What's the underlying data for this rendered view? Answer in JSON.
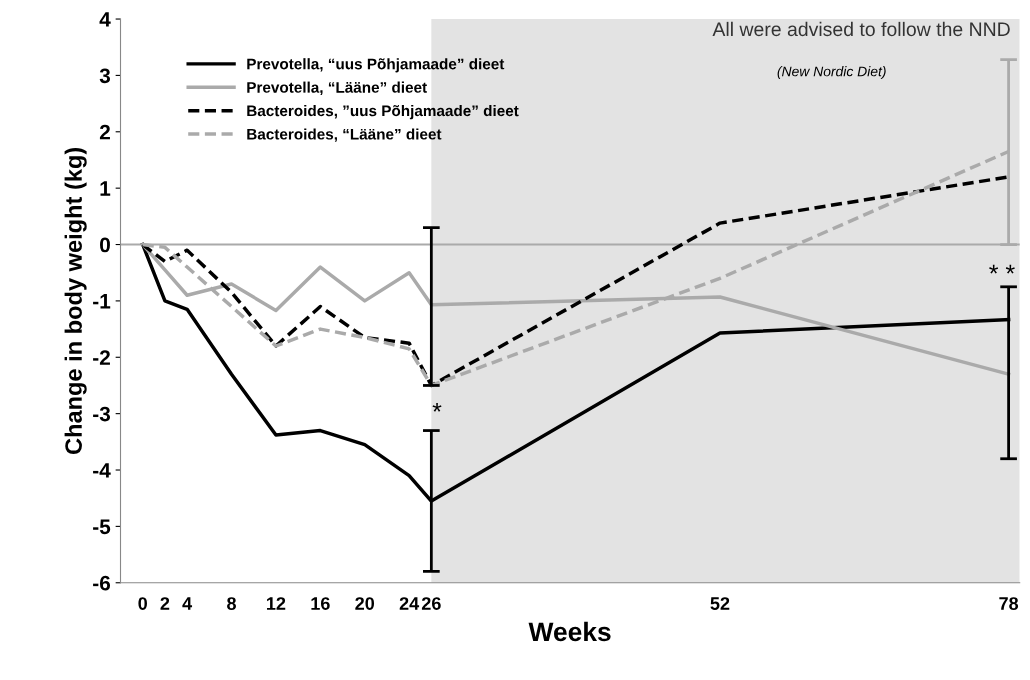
{
  "chart_data": {
    "type": "line",
    "xlabel": "Weeks",
    "ylabel": "Change in body weight (kg)",
    "x": [
      0,
      2,
      4,
      8,
      12,
      16,
      20,
      24,
      26,
      52,
      78
    ],
    "xlim": [
      -2,
      79
    ],
    "xticks": [
      0,
      2,
      4,
      8,
      12,
      16,
      20,
      24,
      26,
      52,
      78
    ],
    "ylim": [
      -6,
      4
    ],
    "yticks": [
      -6,
      -5,
      -4,
      -3,
      -2,
      -1,
      0,
      1,
      2,
      3,
      4
    ],
    "grid": false,
    "legend": "top left",
    "marker": "none",
    "series": [
      {
        "name": "Prevotella, “uus Põhjamaade” dieet",
        "color": "#000000",
        "line_style": "solid",
        "values": [
          0,
          -1.0,
          -1.15,
          -2.3,
          -3.38,
          -3.3,
          -3.55,
          -4.1,
          -4.55,
          -1.57,
          -1.33
        ],
        "errors": [
          null,
          null,
          null,
          null,
          null,
          null,
          null,
          null,
          [
            -5.8,
            -3.3
          ],
          null,
          [
            -3.8,
            -0.75
          ]
        ]
      },
      {
        "name": "Prevotella, “Lääne” dieet",
        "color": "#aaaaaa",
        "line_style": "solid",
        "values": [
          0,
          -0.45,
          -0.9,
          -0.7,
          -1.17,
          -0.4,
          -1.0,
          -0.5,
          -1.07,
          -0.93,
          -2.3
        ]
      },
      {
        "name": "Bacteroides, ”uus Põhjamaade” dieet",
        "color": "#000000",
        "line_style": "dashed",
        "values": [
          0,
          -0.3,
          -0.1,
          -0.85,
          -1.8,
          -1.1,
          -1.65,
          -1.75,
          -2.5,
          0.38,
          1.2
        ],
        "errors": [
          null,
          null,
          null,
          null,
          null,
          null,
          null,
          null,
          [
            -2.5,
            0.3
          ],
          null,
          null
        ]
      },
      {
        "name": "Bacteroides, “Lääne” dieet",
        "color": "#aaaaaa",
        "line_style": "dashed",
        "values": [
          0,
          -0.05,
          -0.4,
          -1.1,
          -1.8,
          -1.5,
          -1.65,
          -1.85,
          -2.5,
          -0.6,
          1.65
        ],
        "errors": [
          null,
          null,
          null,
          null,
          null,
          null,
          null,
          null,
          null,
          null,
          [
            0.0,
            3.28
          ]
        ]
      }
    ],
    "ref_lines": [
      {
        "axis": "y",
        "value": 0,
        "color": "#aaaaaa",
        "line_style": "solid"
      }
    ],
    "bands": [
      {
        "axis": "x",
        "from": 26,
        "to": 79,
        "label": "All were advised to follow the NND",
        "color": "#e3e3e3"
      }
    ],
    "annotations": [
      "(New Nordic Diet)",
      "*",
      "* *"
    ]
  }
}
